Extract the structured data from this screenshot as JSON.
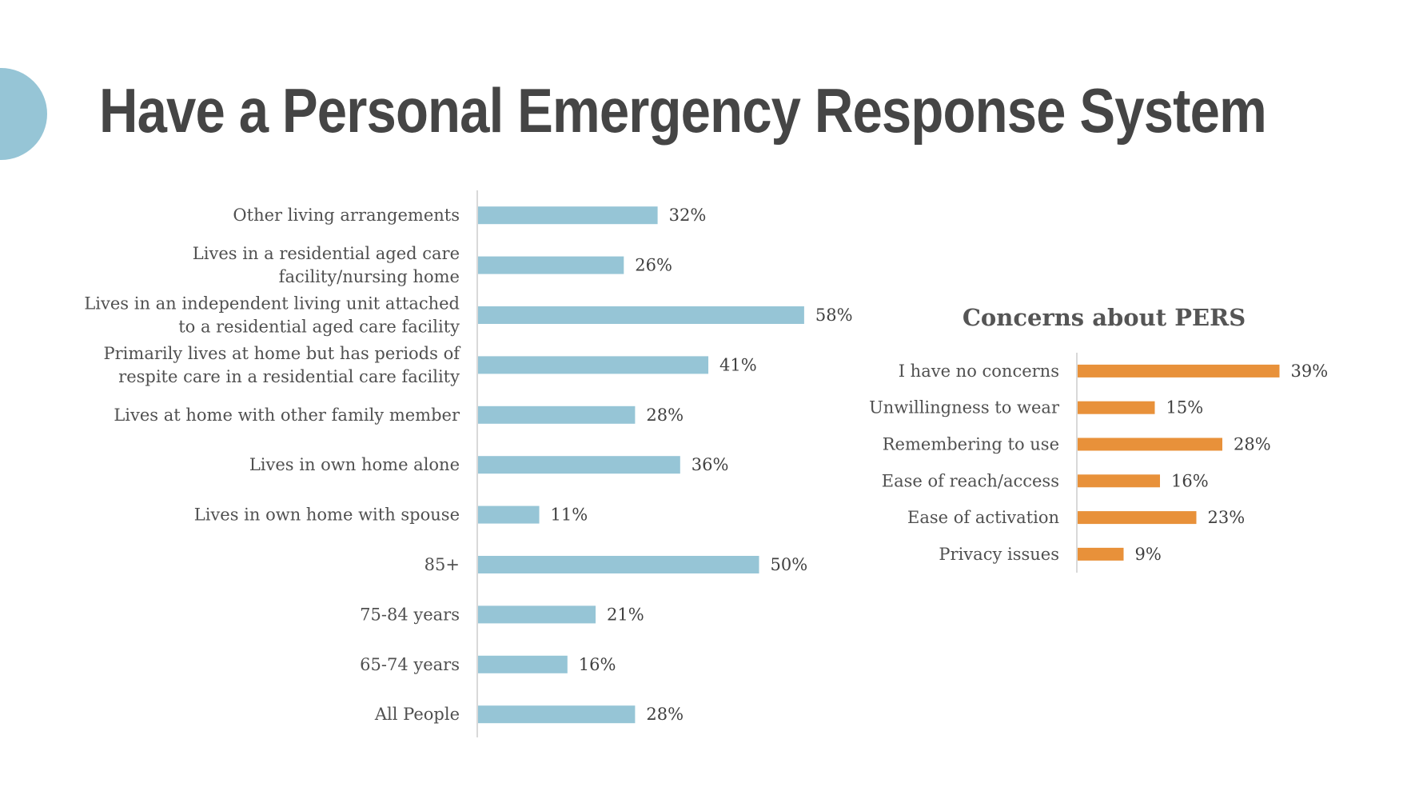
{
  "page": {
    "title": "Have a Personal Emergency Response System"
  },
  "colors": {
    "accent": "#96c5d6",
    "bar_blue": "#96c5d6",
    "bar_orange": "#e8913a",
    "title_text": "#454545",
    "axis_line": "#d9d9d9"
  },
  "chart_data": [
    {
      "type": "bar",
      "orientation": "horizontal",
      "title": "",
      "color": "#96c5d6",
      "xlim": [
        0,
        100
      ],
      "categories": [
        [
          "Other living arrangements"
        ],
        [
          "Lives in a residential aged care",
          "facility/nursing home"
        ],
        [
          "Lives in an independent living unit attached",
          "to a residential aged care facility"
        ],
        [
          "Primarily lives at home but has periods of",
          "respite care in a residential care facility"
        ],
        [
          "Lives at home with other family member"
        ],
        [
          "Lives in own home alone"
        ],
        [
          "Lives in own home with spouse"
        ],
        [
          "85+"
        ],
        [
          "75-84 years"
        ],
        [
          "65-74 years"
        ],
        [
          "All People"
        ]
      ],
      "values": [
        32,
        26,
        58,
        41,
        28,
        36,
        11,
        50,
        21,
        16,
        28
      ],
      "value_labels": [
        "32%",
        "26%",
        "58%",
        "41%",
        "28%",
        "36%",
        "11%",
        "50%",
        "21%",
        "16%",
        "28%"
      ]
    },
    {
      "type": "bar",
      "orientation": "horizontal",
      "title": "Concerns about PERS",
      "color": "#e8913a",
      "xlim": [
        0,
        100
      ],
      "categories": [
        [
          "I have no concerns"
        ],
        [
          "Unwillingness to wear"
        ],
        [
          "Remembering to use"
        ],
        [
          "Ease of reach/access"
        ],
        [
          "Ease of activation"
        ],
        [
          "Privacy issues"
        ]
      ],
      "values": [
        39,
        15,
        28,
        16,
        23,
        9
      ],
      "value_labels": [
        "39%",
        "15%",
        "28%",
        "16%",
        "23%",
        "9%"
      ]
    }
  ]
}
